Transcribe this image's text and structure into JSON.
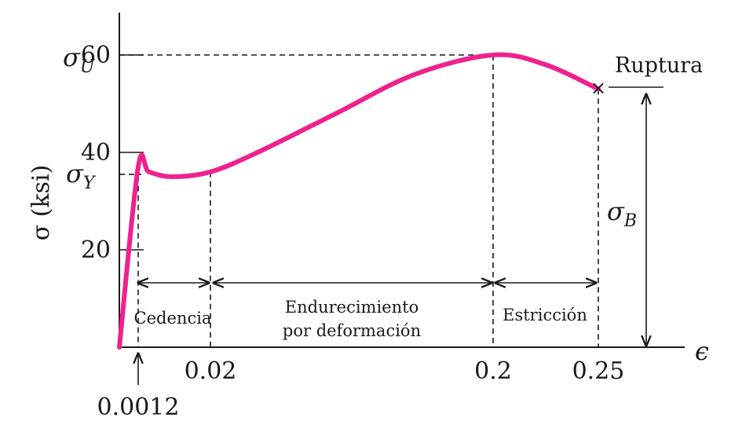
{
  "chart_data": {
    "type": "line",
    "title": "",
    "xlabel": "ϵ",
    "ylabel": "σ (ksi)",
    "x_ticks": [
      "0.0012",
      "0.02",
      "0.2",
      "0.25"
    ],
    "y_ticks": [
      "20",
      "40",
      "60"
    ],
    "series": [
      {
        "x": [
          0.0,
          0.0012,
          0.004,
          0.01,
          0.02,
          0.05,
          0.1,
          0.15,
          0.2,
          0.225,
          0.25
        ],
        "y": [
          0,
          37,
          36,
          35,
          36,
          40,
          48,
          56,
          60,
          58,
          53
        ]
      }
    ],
    "symbols": {
      "ultimate": {
        "base": "σ",
        "sub": "U"
      },
      "yield": {
        "base": "σ",
        "sub": "Y"
      },
      "breaking": {
        "base": "σ",
        "sub": "B"
      }
    },
    "regions": {
      "yielding": "Cedencia",
      "hardening_line1": "Endurecimiento",
      "hardening_line2": "por deformación",
      "necking": "Estricción"
    },
    "annotations": {
      "rupture": "Ruptura"
    },
    "colors": {
      "curve": "#f0218e",
      "axes": "#1a1a1a"
    }
  }
}
